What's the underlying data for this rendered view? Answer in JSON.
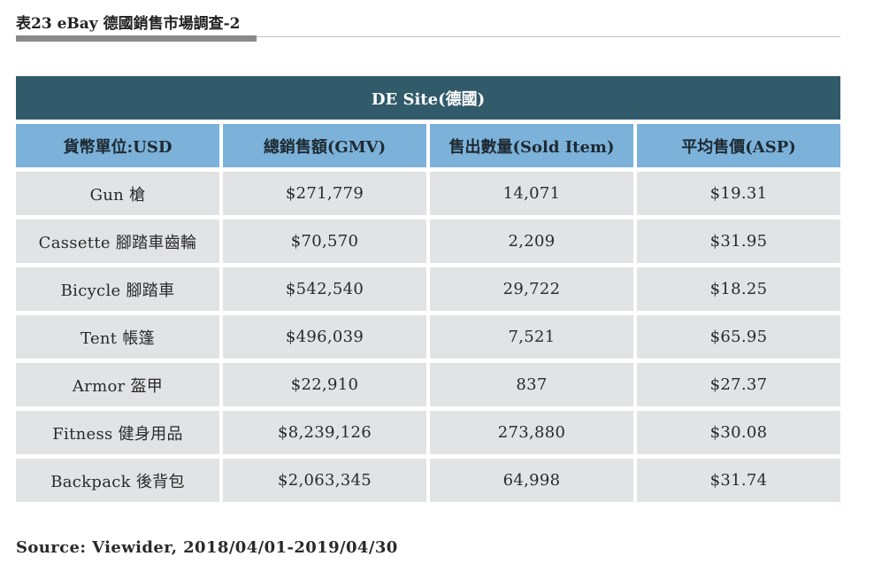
{
  "title": "表23 eBay 德國銷售市場調查-2",
  "table": {
    "caption": "DE Site(德國)",
    "headers": [
      "貨幣單位:USD",
      "總銷售額(GMV)",
      "售出數量(Sold Item)",
      "平均售價(ASP)"
    ],
    "rows": [
      [
        "Gun 槍",
        "$271,779",
        "14,071",
        "$19.31"
      ],
      [
        "Cassette 腳踏車齒輪",
        "$70,570",
        "2,209",
        "$31.95"
      ],
      [
        "Bicycle 腳踏車",
        "$542,540",
        "29,722",
        "$18.25"
      ],
      [
        "Tent 帳篷",
        "$496,039",
        "7,521",
        "$65.95"
      ],
      [
        "Armor 盔甲",
        "$22,910",
        "837",
        "$27.37"
      ],
      [
        "Fitness 健身用品",
        "$8,239,126",
        "273,880",
        "$30.08"
      ],
      [
        "Backpack 後背包",
        "$2,063,345",
        "64,998",
        "$31.74"
      ]
    ]
  },
  "source": "Source: Viewider, 2018/04/01-2019/04/30",
  "colors": {
    "caption_bg": "#315a6a",
    "header_bg": "#7cb2d9",
    "cell_bg": "#e2e3e5"
  }
}
